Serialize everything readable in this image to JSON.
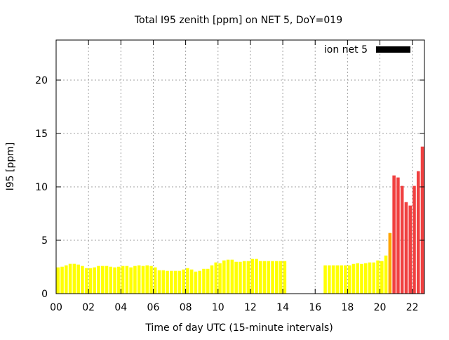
{
  "chart_data": {
    "type": "bar",
    "title": "Total I95 zenith [ppm] on NET 5, DoY=019",
    "xlabel": "Time of day UTC (15-minute intervals)",
    "ylabel": "I95 [ppm]",
    "xlim": [
      0,
      22.75
    ],
    "ylim": [
      0,
      23.75
    ],
    "xticks": [
      "00",
      "02",
      "04",
      "06",
      "08",
      "10",
      "12",
      "14",
      "16",
      "18",
      "20",
      "22"
    ],
    "yticks": [
      "0",
      "5",
      "10",
      "15",
      "20"
    ],
    "grid": true,
    "legend": {
      "label": "ion net 5",
      "placement": "top-right",
      "color": "#000000"
    },
    "bar_interval_hours": 0.25,
    "colors": {
      "yellow": "#ffff00",
      "orange": "#ffa500",
      "red": "#f04040"
    },
    "points": [
      [
        0.0,
        2.46,
        "yellow"
      ],
      [
        0.25,
        2.52,
        "yellow"
      ],
      [
        0.5,
        2.65,
        "yellow"
      ],
      [
        0.75,
        2.79,
        "yellow"
      ],
      [
        1.0,
        2.79,
        "yellow"
      ],
      [
        1.25,
        2.72,
        "yellow"
      ],
      [
        1.5,
        2.59,
        "yellow"
      ],
      [
        1.75,
        2.39,
        "yellow"
      ],
      [
        2.0,
        2.39,
        "yellow"
      ],
      [
        2.25,
        2.46,
        "yellow"
      ],
      [
        2.5,
        2.59,
        "yellow"
      ],
      [
        2.75,
        2.59,
        "yellow"
      ],
      [
        3.0,
        2.59,
        "yellow"
      ],
      [
        3.25,
        2.52,
        "yellow"
      ],
      [
        3.5,
        2.46,
        "yellow"
      ],
      [
        3.75,
        2.52,
        "yellow"
      ],
      [
        4.0,
        2.59,
        "yellow"
      ],
      [
        4.25,
        2.59,
        "yellow"
      ],
      [
        4.5,
        2.46,
        "yellow"
      ],
      [
        4.75,
        2.59,
        "yellow"
      ],
      [
        5.0,
        2.65,
        "yellow"
      ],
      [
        5.25,
        2.59,
        "yellow"
      ],
      [
        5.5,
        2.65,
        "yellow"
      ],
      [
        5.75,
        2.59,
        "yellow"
      ],
      [
        6.0,
        2.46,
        "yellow"
      ],
      [
        6.25,
        2.19,
        "yellow"
      ],
      [
        6.5,
        2.19,
        "yellow"
      ],
      [
        6.75,
        2.13,
        "yellow"
      ],
      [
        7.0,
        2.13,
        "yellow"
      ],
      [
        7.25,
        2.13,
        "yellow"
      ],
      [
        7.5,
        2.13,
        "yellow"
      ],
      [
        7.75,
        2.26,
        "yellow"
      ],
      [
        8.0,
        2.39,
        "yellow"
      ],
      [
        8.25,
        2.26,
        "yellow"
      ],
      [
        8.5,
        2.06,
        "yellow"
      ],
      [
        8.75,
        2.13,
        "yellow"
      ],
      [
        9.0,
        2.32,
        "yellow"
      ],
      [
        9.25,
        2.32,
        "yellow"
      ],
      [
        9.5,
        2.65,
        "yellow"
      ],
      [
        9.75,
        2.92,
        "yellow"
      ],
      [
        10.0,
        2.85,
        "yellow"
      ],
      [
        10.25,
        3.11,
        "yellow"
      ],
      [
        10.5,
        3.18,
        "yellow"
      ],
      [
        10.75,
        3.18,
        "yellow"
      ],
      [
        11.0,
        2.98,
        "yellow"
      ],
      [
        11.25,
        2.98,
        "yellow"
      ],
      [
        11.5,
        3.05,
        "yellow"
      ],
      [
        11.75,
        3.05,
        "yellow"
      ],
      [
        12.0,
        3.25,
        "yellow"
      ],
      [
        12.25,
        3.25,
        "yellow"
      ],
      [
        12.5,
        3.05,
        "yellow"
      ],
      [
        12.75,
        3.05,
        "yellow"
      ],
      [
        13.0,
        3.05,
        "yellow"
      ],
      [
        13.25,
        3.05,
        "yellow"
      ],
      [
        13.5,
        3.05,
        "yellow"
      ],
      [
        13.75,
        3.05,
        "yellow"
      ],
      [
        14.0,
        3.05,
        "yellow"
      ],
      [
        16.5,
        2.65,
        "yellow"
      ],
      [
        16.75,
        2.65,
        "yellow"
      ],
      [
        17.0,
        2.65,
        "yellow"
      ],
      [
        17.25,
        2.65,
        "yellow"
      ],
      [
        17.5,
        2.65,
        "yellow"
      ],
      [
        17.75,
        2.65,
        "yellow"
      ],
      [
        18.0,
        2.65,
        "yellow"
      ],
      [
        18.25,
        2.78,
        "yellow"
      ],
      [
        18.5,
        2.85,
        "yellow"
      ],
      [
        18.75,
        2.78,
        "yellow"
      ],
      [
        19.0,
        2.85,
        "yellow"
      ],
      [
        19.25,
        2.92,
        "yellow"
      ],
      [
        19.5,
        2.92,
        "yellow"
      ],
      [
        19.75,
        3.11,
        "yellow"
      ],
      [
        20.0,
        3.05,
        "yellow"
      ],
      [
        20.25,
        3.57,
        "yellow"
      ],
      [
        20.5,
        5.68,
        "orange"
      ],
      [
        20.75,
        11.07,
        "red"
      ],
      [
        21.0,
        10.88,
        "red"
      ],
      [
        21.25,
        10.09,
        "red"
      ],
      [
        21.5,
        8.57,
        "red"
      ],
      [
        21.75,
        8.25,
        "red"
      ],
      [
        22.0,
        10.09,
        "red"
      ],
      [
        22.25,
        11.47,
        "red"
      ],
      [
        22.5,
        13.77,
        "red"
      ]
    ]
  }
}
